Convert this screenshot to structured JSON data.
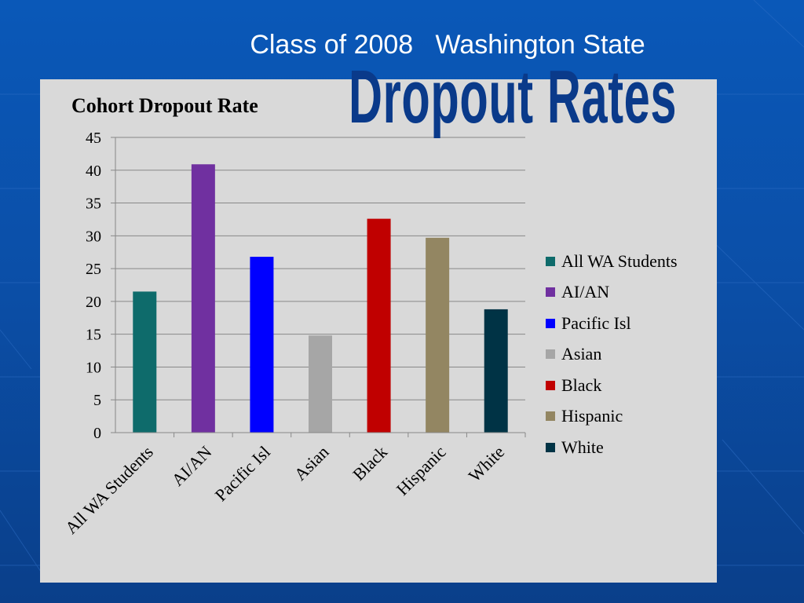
{
  "slide": {
    "subtitle": "Class of 2008   Washington State",
    "title": "Dropout Rates"
  },
  "chart_data": {
    "type": "bar",
    "title": "Cohort Dropout Rate",
    "xlabel": "",
    "ylabel": "",
    "categories": [
      "All WA Students",
      "AI/AN",
      "Pacific Isl",
      "Asian",
      "Black",
      "Hispanic",
      "White"
    ],
    "values": [
      21.5,
      40.9,
      26.8,
      14.8,
      32.6,
      29.7,
      18.8
    ],
    "colors": [
      "#0e6b6b",
      "#7030a0",
      "#0000ff",
      "#a6a6a6",
      "#c00000",
      "#938662",
      "#003345"
    ],
    "ylim": [
      0,
      45
    ],
    "yticks": [
      0,
      5,
      10,
      15,
      20,
      25,
      30,
      35,
      40,
      45
    ],
    "grid": true,
    "legend_position": "right"
  }
}
